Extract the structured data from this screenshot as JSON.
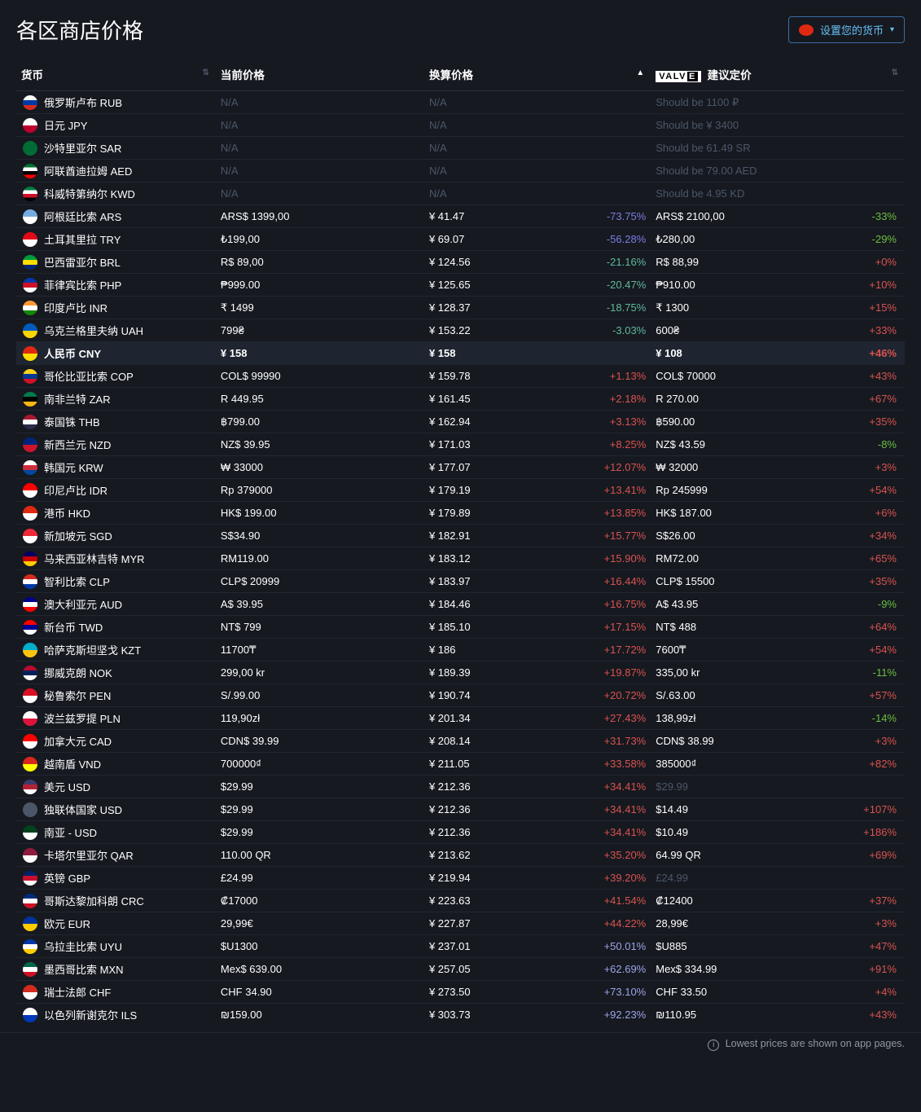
{
  "title": "各区商店价格",
  "set_currency_label": "设置您的货币",
  "footer_note": "Lowest prices are shown on app pages.",
  "columns": {
    "currency": "货币",
    "current_price": "当前价格",
    "converted_price": "换算价格",
    "valve_suggested": "建议定价"
  },
  "colors": {
    "bg": "#161920",
    "text": "#c7d5e0",
    "row_border": "#22262f",
    "muted": "#4b5768",
    "green": "#6bbf3f",
    "teal": "#5fb8a0",
    "red": "#d9534f",
    "purple": "#7d7de0",
    "purple2": "#9da4e8",
    "link": "#66c0f4",
    "highlight_bg": "#1e2530"
  },
  "rows": [
    {
      "flag": "#ffffff,#0039a6,#d52b1e",
      "name": "俄罗斯卢布 RUB",
      "price": "N/A",
      "na": true,
      "conv": "N/A",
      "pct": "",
      "pcol": "",
      "sug": "Should be 1100 ₽",
      "smuted": true,
      "spct": "",
      "scol": ""
    },
    {
      "flag": "#ffffff,#bc002d",
      "name": "日元 JPY",
      "price": "N/A",
      "na": true,
      "conv": "N/A",
      "pct": "",
      "pcol": "",
      "sug": "Should be ¥ 3400",
      "smuted": true,
      "spct": "",
      "scol": ""
    },
    {
      "flag": "#006c35",
      "name": "沙特里亚尔 SAR",
      "price": "N/A",
      "na": true,
      "conv": "N/A",
      "pct": "",
      "pcol": "",
      "sug": "Should be 61.49 SR",
      "smuted": true,
      "spct": "",
      "scol": ""
    },
    {
      "flag": "#00732f,#ffffff,#000000,#ff0000",
      "name": "阿联酋迪拉姆 AED",
      "price": "N/A",
      "na": true,
      "conv": "N/A",
      "pct": "",
      "pcol": "",
      "sug": "Should be 79.00 AED",
      "smuted": true,
      "spct": "",
      "scol": ""
    },
    {
      "flag": "#007a3d,#ffffff,#ce1126,#000000",
      "name": "科威特第纳尔 KWD",
      "price": "N/A",
      "na": true,
      "conv": "N/A",
      "pct": "",
      "pcol": "",
      "sug": "Should be 4.95 KD",
      "smuted": true,
      "spct": "",
      "scol": ""
    },
    {
      "flag": "#74acdf,#ffffff",
      "name": "阿根廷比索 ARS",
      "price": "ARS$ 1399,00",
      "conv": "¥ 41.47",
      "pct": "-73.75%",
      "pcol": "purple",
      "sug": "ARS$ 2100,00",
      "spct": "-33%",
      "scol": "green"
    },
    {
      "flag": "#e30a17,#ffffff",
      "name": "土耳其里拉 TRY",
      "price": "₺199,00",
      "conv": "¥ 69.07",
      "pct": "-56.28%",
      "pcol": "purple",
      "sug": "₺280,00",
      "spct": "-29%",
      "scol": "green"
    },
    {
      "flag": "#009b3a,#ffdf00,#002776",
      "name": "巴西雷亚尔 BRL",
      "price": "R$ 89,00",
      "conv": "¥ 124.56",
      "pct": "-21.16%",
      "pcol": "teal",
      "sug": "R$ 88,99",
      "spct": "+0%",
      "scol": "red"
    },
    {
      "flag": "#0038a8,#ce1126,#ffffff",
      "name": "菲律宾比索 PHP",
      "price": "₱999.00",
      "conv": "¥ 125.65",
      "pct": "-20.47%",
      "pcol": "teal",
      "sug": "₱910.00",
      "spct": "+10%",
      "scol": "red"
    },
    {
      "flag": "#ff9933,#ffffff,#138808",
      "name": "印度卢比 INR",
      "price": "₹ 1499",
      "conv": "¥ 128.37",
      "pct": "-18.75%",
      "pcol": "teal",
      "sug": "₹ 1300",
      "spct": "+15%",
      "scol": "red"
    },
    {
      "flag": "#005bbb,#ffd500",
      "name": "乌克兰格里夫纳 UAH",
      "price": "799₴",
      "conv": "¥ 153.22",
      "pct": "-3.03%",
      "pcol": "teal",
      "sug": "600₴",
      "spct": "+33%",
      "scol": "red"
    },
    {
      "flag": "#de2910,#ffde00",
      "name": "人民币 CNY",
      "price": "¥ 158",
      "conv": "¥ 158",
      "convmuted": true,
      "pct": "",
      "pcol": "",
      "sug": "¥ 108",
      "spct": "+46%",
      "scol": "red",
      "highlight": true
    },
    {
      "flag": "#fcd116,#003893,#ce1126",
      "name": "哥伦比亚比索 COP",
      "price": "COL$ 99990",
      "conv": "¥ 159.78",
      "pct": "+1.13%",
      "pcol": "red",
      "sug": "COL$ 70000",
      "spct": "+43%",
      "scol": "red"
    },
    {
      "flag": "#007a4d,#000000,#ffb612",
      "name": "南非兰特 ZAR",
      "price": "R 449.95",
      "conv": "¥ 161.45",
      "pct": "+2.18%",
      "pcol": "red",
      "sug": "R 270.00",
      "spct": "+67%",
      "scol": "red"
    },
    {
      "flag": "#a51931,#ffffff,#2d2a4a",
      "name": "泰国铢 THB",
      "price": "฿799.00",
      "conv": "¥ 162.94",
      "pct": "+3.13%",
      "pcol": "red",
      "sug": "฿590.00",
      "spct": "+35%",
      "scol": "red"
    },
    {
      "flag": "#00247d,#cc142b",
      "name": "新西兰元 NZD",
      "price": "NZ$ 39.95",
      "conv": "¥ 171.03",
      "pct": "+8.25%",
      "pcol": "red",
      "sug": "NZ$ 43.59",
      "spct": "-8%",
      "scol": "green"
    },
    {
      "flag": "#ffffff,#cd2e3a,#0047a0",
      "name": "韩国元 KRW",
      "price": "₩ 33000",
      "conv": "¥ 177.07",
      "pct": "+12.07%",
      "pcol": "red",
      "sug": "₩ 32000",
      "spct": "+3%",
      "scol": "red"
    },
    {
      "flag": "#ff0000,#ffffff",
      "name": "印尼卢比 IDR",
      "price": "Rp 379000",
      "conv": "¥ 179.19",
      "pct": "+13.41%",
      "pcol": "red",
      "sug": "Rp 245999",
      "spct": "+54%",
      "scol": "red"
    },
    {
      "flag": "#de2910,#ffffff",
      "name": "港币 HKD",
      "price": "HK$ 199.00",
      "conv": "¥ 179.89",
      "pct": "+13.85%",
      "pcol": "red",
      "sug": "HK$ 187.00",
      "spct": "+6%",
      "scol": "red"
    },
    {
      "flag": "#ed2939,#ffffff",
      "name": "新加坡元 SGD",
      "price": "S$34.90",
      "conv": "¥ 182.91",
      "pct": "+15.77%",
      "pcol": "red",
      "sug": "S$26.00",
      "spct": "+34%",
      "scol": "red"
    },
    {
      "flag": "#010066,#cc0001,#ffcc00",
      "name": "马来西亚林吉特 MYR",
      "price": "RM119.00",
      "conv": "¥ 183.12",
      "pct": "+15.90%",
      "pcol": "red",
      "sug": "RM72.00",
      "spct": "+65%",
      "scol": "red"
    },
    {
      "flag": "#d52b1e,#ffffff,#0039a6",
      "name": "智利比索 CLP",
      "price": "CLP$ 20999",
      "conv": "¥ 183.97",
      "pct": "+16.44%",
      "pcol": "red",
      "sug": "CLP$ 15500",
      "spct": "+35%",
      "scol": "red"
    },
    {
      "flag": "#00008b,#ffffff,#ff0000",
      "name": "澳大利亚元 AUD",
      "price": "A$ 39.95",
      "conv": "¥ 184.46",
      "pct": "+16.75%",
      "pcol": "red",
      "sug": "A$ 43.95",
      "spct": "-9%",
      "scol": "green"
    },
    {
      "flag": "#fe0000,#000095,#ffffff",
      "name": "新台币 TWD",
      "price": "NT$ 799",
      "conv": "¥ 185.10",
      "pct": "+17.15%",
      "pcol": "red",
      "sug": "NT$ 488",
      "spct": "+64%",
      "scol": "red"
    },
    {
      "flag": "#00afca,#fec50c",
      "name": "哈萨克斯坦坚戈 KZT",
      "price": "11700₸",
      "conv": "¥ 186",
      "pct": "+17.72%",
      "pcol": "red",
      "sug": "7600₸",
      "spct": "+54%",
      "scol": "red"
    },
    {
      "flag": "#ba0c2f,#00205b,#ffffff",
      "name": "挪威克朗 NOK",
      "price": "299,00 kr",
      "conv": "¥ 189.39",
      "pct": "+19.87%",
      "pcol": "red",
      "sug": "335,00 kr",
      "spct": "-11%",
      "scol": "green"
    },
    {
      "flag": "#d91023,#ffffff",
      "name": "秘鲁索尔 PEN",
      "price": "S/.99.00",
      "conv": "¥ 190.74",
      "pct": "+20.72%",
      "pcol": "red",
      "sug": "S/.63.00",
      "spct": "+57%",
      "scol": "red"
    },
    {
      "flag": "#ffffff,#dc143c",
      "name": "波兰兹罗提 PLN",
      "price": "119,90zł",
      "conv": "¥ 201.34",
      "pct": "+27.43%",
      "pcol": "red",
      "sug": "138,99zł",
      "spct": "-14%",
      "scol": "green"
    },
    {
      "flag": "#ff0000,#ffffff",
      "name": "加拿大元 CAD",
      "price": "CDN$ 39.99",
      "conv": "¥ 208.14",
      "pct": "+31.73%",
      "pcol": "red",
      "sug": "CDN$ 38.99",
      "spct": "+3%",
      "scol": "red"
    },
    {
      "flag": "#da251d,#ffff00",
      "name": "越南盾 VND",
      "price": "700000₫",
      "conv": "¥ 211.05",
      "pct": "+33.58%",
      "pcol": "red",
      "sug": "385000₫",
      "spct": "+82%",
      "scol": "red"
    },
    {
      "flag": "#3c3b6e,#b22234,#ffffff",
      "name": "美元 USD",
      "price": "$29.99",
      "conv": "¥ 212.36",
      "pct": "+34.41%",
      "pcol": "red",
      "sug": "$29.99",
      "smuted": true,
      "spct": "",
      "scol": ""
    },
    {
      "flag": "#4b5768",
      "name": "独联体国家 USD",
      "price": "$29.99",
      "conv": "¥ 212.36",
      "pct": "+34.41%",
      "pcol": "red",
      "sug": "$14.49",
      "spct": "+107%",
      "scol": "red"
    },
    {
      "flag": "#01411c,#ffffff",
      "name": "南亚 - USD",
      "price": "$29.99",
      "conv": "¥ 212.36",
      "pct": "+34.41%",
      "pcol": "red",
      "sug": "$10.49",
      "spct": "+186%",
      "scol": "red"
    },
    {
      "flag": "#8d1b3d,#ffffff",
      "name": "卡塔尔里亚尔 QAR",
      "price": "110.00 QR",
      "conv": "¥ 213.62",
      "pct": "+35.20%",
      "pcol": "red",
      "sug": "64.99 QR",
      "spct": "+69%",
      "scol": "red"
    },
    {
      "flag": "#012169,#c8102e,#ffffff",
      "name": "英镑 GBP",
      "price": "£24.99",
      "conv": "¥ 219.94",
      "pct": "+39.20%",
      "pcol": "red",
      "sug": "£24.99",
      "smuted": true,
      "spct": "",
      "scol": ""
    },
    {
      "flag": "#002b7f,#ffffff,#ce1126",
      "name": "哥斯达黎加科朗 CRC",
      "price": "₡17000",
      "conv": "¥ 223.63",
      "pct": "+41.54%",
      "pcol": "red",
      "sug": "₡12400",
      "spct": "+37%",
      "scol": "red"
    },
    {
      "flag": "#003399,#ffcc00",
      "name": "欧元 EUR",
      "price": "29,99€",
      "conv": "¥ 227.87",
      "pct": "+44.22%",
      "pcol": "red",
      "sug": "28,99€",
      "spct": "+3%",
      "scol": "red"
    },
    {
      "flag": "#0038a8,#ffffff,#ffcd00",
      "name": "乌拉圭比索 UYU",
      "price": "$U1300",
      "conv": "¥ 237.01",
      "pct": "+50.01%",
      "pcol": "purple2",
      "sug": "$U885",
      "spct": "+47%",
      "scol": "red"
    },
    {
      "flag": "#006847,#ffffff,#ce1126",
      "name": "墨西哥比索 MXN",
      "price": "Mex$ 639.00",
      "conv": "¥ 257.05",
      "pct": "+62.69%",
      "pcol": "purple2",
      "sug": "Mex$ 334.99",
      "spct": "+91%",
      "scol": "red"
    },
    {
      "flag": "#d52b1e,#ffffff",
      "name": "瑞士法郎 CHF",
      "price": "CHF 34.90",
      "conv": "¥ 273.50",
      "pct": "+73.10%",
      "pcol": "purple2",
      "sug": "CHF 33.50",
      "spct": "+4%",
      "scol": "red"
    },
    {
      "flag": "#ffffff,#0038b8",
      "name": "以色列新谢克尔 ILS",
      "price": "₪159.00",
      "conv": "¥ 303.73",
      "pct": "+92.23%",
      "pcol": "purple2",
      "sug": "₪110.95",
      "spct": "+43%",
      "scol": "red"
    }
  ]
}
